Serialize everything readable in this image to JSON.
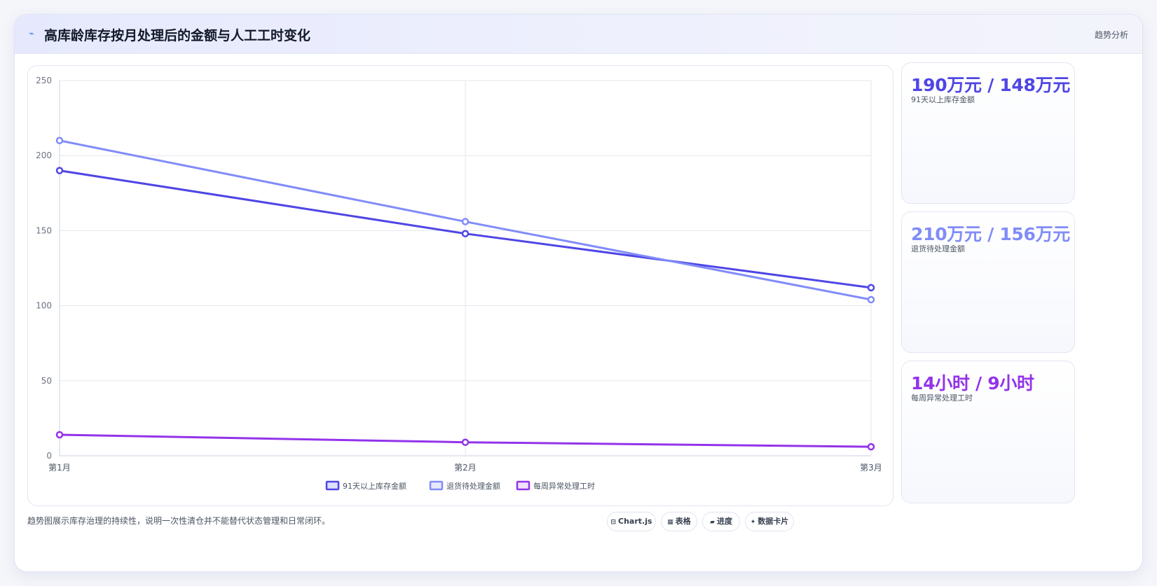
{
  "header": {
    "icon": "trend-line-icon",
    "title": "高库龄库存按月处理后的金额与人工工时变化",
    "tag": "趋势分析"
  },
  "chart_data": {
    "type": "line",
    "categories": [
      "第1月",
      "第2月",
      "第3月"
    ],
    "yticks": [
      "0",
      "50",
      "100",
      "150",
      "200",
      "250"
    ],
    "ylim": [
      0,
      250
    ],
    "grid": true,
    "legend_position": "bottom",
    "series": [
      {
        "name": "91天以上库存金额",
        "values": [
          190,
          148,
          112
        ],
        "color": "#4f46e5",
        "fill": "#dfe0fb"
      },
      {
        "name": "退货待处理金额",
        "values": [
          210,
          156,
          104
        ],
        "color": "#818cf8",
        "fill": "#e6e9fd"
      },
      {
        "name": "每周异常处理工时",
        "values": [
          14,
          9,
          6
        ],
        "color": "#9333ea",
        "fill": "#f1e2fd"
      }
    ]
  },
  "stats": [
    {
      "value": "190万元 / 148万元",
      "label": "91天以上库存金额",
      "color": "#4f46e5"
    },
    {
      "value": "210万元 / 156万元",
      "label": "退货待处理金额",
      "color": "#818cf8"
    },
    {
      "value": "14小时 / 9小时",
      "label": "每周异常处理工时",
      "color": "#9333ea"
    }
  ],
  "footer": {
    "note": "趋势图展示库存治理的持续性，说明一次性清仓并不能替代状态管理和日常闭环。",
    "chips": [
      {
        "icon": "⊟",
        "icon_name": "chart-icon",
        "label": "Chart.js"
      },
      {
        "icon": "▦",
        "icon_name": "table-icon",
        "label": "表格"
      },
      {
        "icon": "▰",
        "icon_name": "progress-icon",
        "label": "进度"
      },
      {
        "icon": "✦",
        "icon_name": "data-card-icon",
        "label": "数据卡片"
      }
    ]
  }
}
